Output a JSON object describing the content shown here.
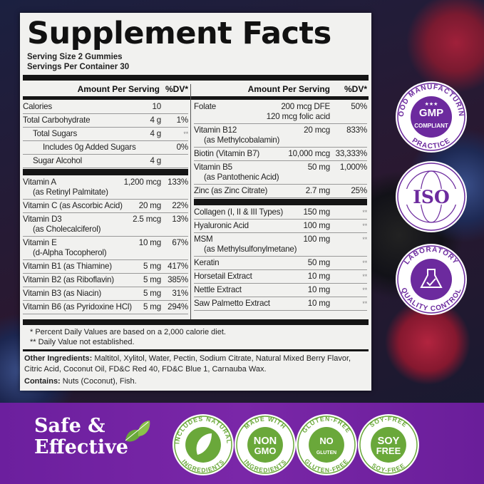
{
  "title": "Supplement Facts",
  "serving_size": "Serving Size 2 Gummies",
  "servings_per_container": "Servings Per Container 30",
  "header": {
    "amount": "Amount Per Serving",
    "dv": "%DV*"
  },
  "left": {
    "group1": [
      {
        "name": "Calories",
        "amount": "10",
        "dv": ""
      },
      {
        "name": "Total Carbohydrate",
        "amount": "4 g",
        "dv": "1%"
      },
      {
        "name": "Total Sugars",
        "amount": "4 g",
        "dv": "**",
        "indent": 1
      },
      {
        "name": "Includes 0g Added Sugars",
        "amount": "",
        "dv": "0%",
        "indent": 2
      },
      {
        "name": "Sugar Alcohol",
        "amount": "4 g",
        "dv": "",
        "indent": 1
      }
    ],
    "group2": [
      {
        "name": "Vitamin A",
        "sub": "(as Retinyl Palmitate)",
        "amount": "1,200 mcg",
        "dv": "133%"
      },
      {
        "name": "Vitamin C (as Ascorbic Acid)",
        "amount": "20 mg",
        "dv": "22%"
      },
      {
        "name": "Vitamin D3",
        "sub": "(as Cholecalciferol)",
        "amount": "2.5 mcg",
        "dv": "13%"
      },
      {
        "name": "Vitamin E",
        "sub": "(d-Alpha Tocopherol)",
        "amount": "10 mg",
        "dv": "67%"
      },
      {
        "name": "Vitamin B1 (as Thiamine)",
        "amount": "5 mg",
        "dv": "417%"
      },
      {
        "name": "Vitamin B2 (as Riboflavin)",
        "amount": "5 mg",
        "dv": "385%"
      },
      {
        "name": "Vitamin B3 (as Niacin)",
        "amount": "5 mg",
        "dv": "31%"
      },
      {
        "name": "Vitamin B6  (as Pyridoxine HCl)",
        "amount": "5 mg",
        "dv": "294%"
      }
    ]
  },
  "right": {
    "group1": [
      {
        "name": "Folate",
        "amount": "200 mcg DFE",
        "amount2": "120 mcg folic acid",
        "dv": "50%"
      },
      {
        "name": "Vitamin B12",
        "sub": "(as Methylcobalamin)",
        "amount": "20 mcg",
        "dv": "833%"
      },
      {
        "name": "Biotin (Vitamin B7)",
        "amount": "10,000 mcg",
        "dv": "33,333%"
      },
      {
        "name": "Vitamin B5",
        "sub": "(as Pantothenic Acid)",
        "amount": "50 mg",
        "dv": "1,000%"
      },
      {
        "name": "Zinc (as Zinc Citrate)",
        "amount": "2.7 mg",
        "dv": "25%"
      }
    ],
    "group2": [
      {
        "name": "Collagen (I, II & III Types)",
        "amount": "150 mg",
        "dv": "**"
      },
      {
        "name": "Hyaluronic Acid",
        "amount": "100 mg",
        "dv": "**"
      },
      {
        "name": "MSM",
        "sub": "(as Methylsulfonylmetane)",
        "amount": "100 mg",
        "dv": "**"
      },
      {
        "name": "Keratin",
        "amount": "50 mg",
        "dv": "**"
      },
      {
        "name": "Horsetail Extract",
        "amount": "10 mg",
        "dv": "**"
      },
      {
        "name": "Nettle Extract",
        "amount": "10 mg",
        "dv": "**"
      },
      {
        "name": "Saw Palmetto Extract",
        "amount": "10 mg",
        "dv": "**"
      }
    ]
  },
  "notes": [
    "*  Percent Daily Values are based on a 2,000 calorie diet.",
    "** Daily Value not established."
  ],
  "other_ingredients": {
    "label": "Other Ingredients:",
    "text": " Maltitol, Xylitol, Water, Pectin, Sodium Citrate, Natural Mixed Berry Flavor, Citric Acid, Coconut Oil, FD&C Red 40, FD&C Blue 1, Carnauba Wax."
  },
  "contains": {
    "label": "Contains:",
    "text": " Nuts (Coconut), Fish."
  },
  "side_badges": [
    {
      "top": "GOOD MANUFACTURING",
      "bottom": "PRACTICE",
      "center": "GMP",
      "center2": "COMPLIANT",
      "icon": "stars"
    },
    {
      "top": "",
      "bottom": "",
      "center": "ISO",
      "center2": "",
      "icon": "globe-icon"
    },
    {
      "top": "LABORATORY",
      "bottom": "QUALITY CONTROL",
      "center": "",
      "center2": "",
      "icon": "flask-check-icon"
    }
  ],
  "slogan": [
    "Safe &",
    "Effective"
  ],
  "bottom_badges": [
    {
      "top": "INCLUDES NATURAL",
      "bottom": "INGREDIENTS",
      "center": "",
      "center2": "",
      "icon": "leaf-icon"
    },
    {
      "top": "MADE WITH",
      "bottom": "INGREDIENTS",
      "center": "NON",
      "center2": "GMO"
    },
    {
      "top": "GLUTEN-FREE",
      "bottom": "GLUTEN-FREE",
      "center": "NO",
      "center2": "GLUTEN"
    },
    {
      "top": "SOY-FREE",
      "bottom": "SOY-FREE",
      "center": "SOY",
      "center2": "FREE"
    }
  ],
  "colors": {
    "purple": "#6c1f9e",
    "green": "#6aa83a",
    "panel": "#f1f1ef"
  }
}
